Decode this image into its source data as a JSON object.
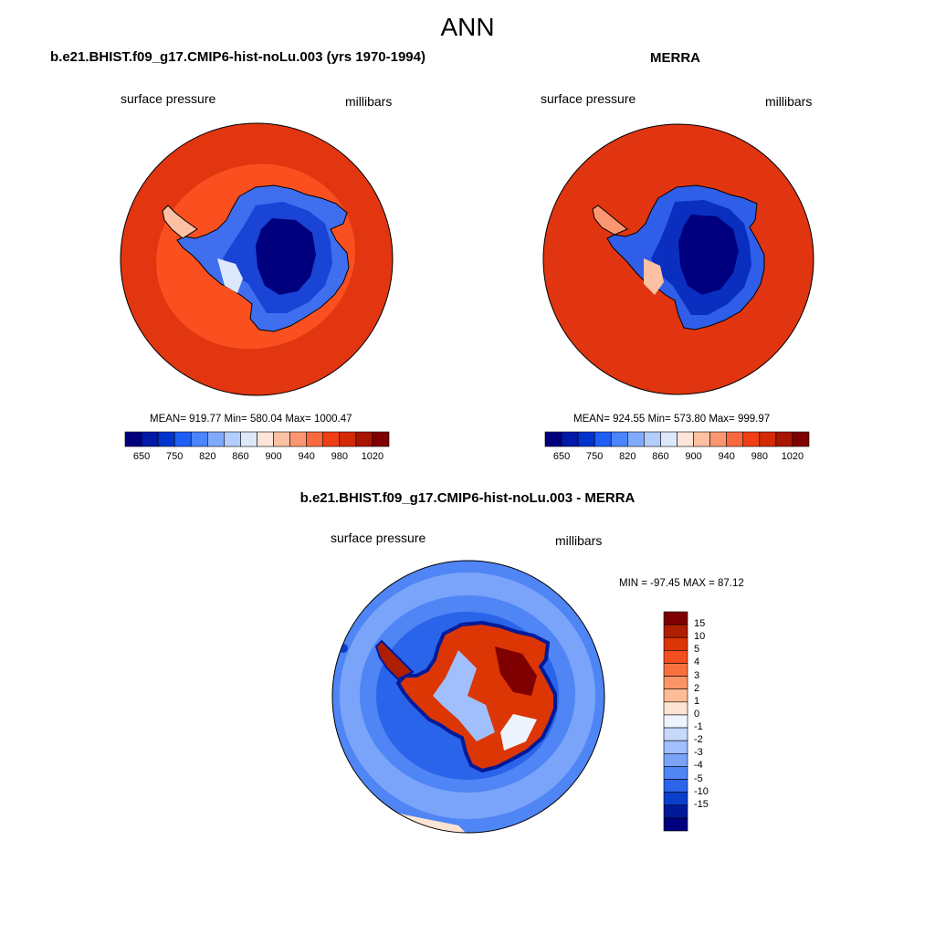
{
  "title": "ANN",
  "panels": [
    {
      "id": "model",
      "case_title": "b.e21.BHIST.f09_g17.CMIP6-hist-noLu.003 (yrs 1970-1994)",
      "variable": "surface pressure",
      "units": "millibars",
      "stats": "MEAN= 919.77  Min= 580.04  Max= 1000.47",
      "colorbar_ticks": [
        "650",
        "750",
        "820",
        "860",
        "900",
        "940",
        "980",
        "1020"
      ]
    },
    {
      "id": "obs",
      "case_title": "MERRA",
      "variable": "surface pressure",
      "units": "millibars",
      "stats": "MEAN= 924.55  Min= 573.80  Max= 999.97",
      "colorbar_ticks": [
        "650",
        "750",
        "820",
        "860",
        "900",
        "940",
        "980",
        "1020"
      ]
    }
  ],
  "diff": {
    "case_title": "b.e21.BHIST.f09_g17.CMIP6-hist-noLu.003 - MERRA",
    "variable": "surface pressure",
    "units": "millibars",
    "stats": "MIN = -97.45 MAX =  87.12",
    "colorbar_ticks": [
      "15",
      "10",
      "5",
      "4",
      "3",
      "2",
      "1",
      "0",
      "-1",
      "-2",
      "-3",
      "-4",
      "-5",
      "-10",
      "-15"
    ]
  },
  "colors": {
    "sequential": [
      "#00007f",
      "#0019a8",
      "#0033cc",
      "#1f5ef5",
      "#4b84fb",
      "#80aafc",
      "#b3cdfd",
      "#dde8fd",
      "#fde4d6",
      "#fcc0a3",
      "#fb9770",
      "#f9683f",
      "#f03f14",
      "#d42a05",
      "#a81500",
      "#7f0000"
    ],
    "diverging": [
      "#7f0000",
      "#b01e00",
      "#dc3605",
      "#f34f1f",
      "#f9703f",
      "#fb9567",
      "#fcbc98",
      "#fde3d2",
      "#eef3fd",
      "#c6d8fc",
      "#a0bffc",
      "#7aa4f9",
      "#4f85f4",
      "#2a64ea",
      "#0a3fcc",
      "#001a99",
      "#00007f"
    ],
    "ocean_model": "#e23610",
    "ocean_model_ring": "#fa5020",
    "ocean_obs": "#e03510"
  }
}
